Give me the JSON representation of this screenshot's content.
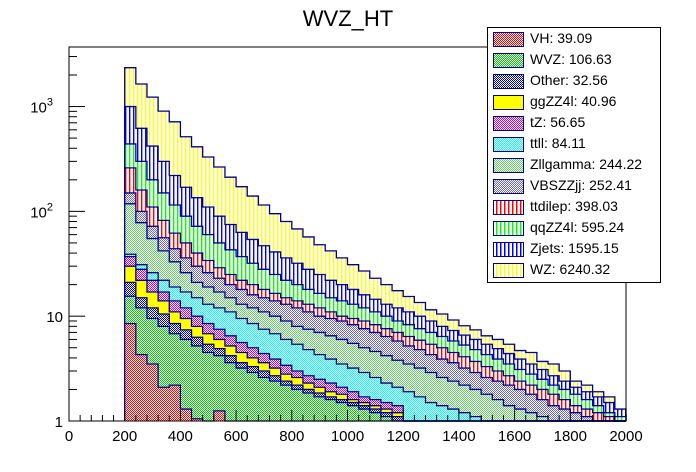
{
  "chart_data": {
    "type": "bar",
    "subtype": "stacked-histogram",
    "title": "WVZ_HT",
    "xlabel": "",
    "ylabel": "",
    "xlim": [
      0,
      2000
    ],
    "ylim": [
      1,
      3700
    ],
    "yscale": "log",
    "x_ticks": [
      "0",
      "200",
      "400",
      "600",
      "800",
      "1000",
      "1200",
      "1400",
      "1600",
      "1800",
      "2000"
    ],
    "y_ticks": [
      {
        "value": 1,
        "label": "1"
      },
      {
        "value": 10,
        "label": "10"
      },
      {
        "value": 100,
        "label": "10",
        "exp": "2"
      },
      {
        "value": 1000,
        "label": "10",
        "exp": "3"
      }
    ],
    "bin_edges_start": 200,
    "bin_width": 40,
    "legend_position": "top-right",
    "note": "cumulative stack tops per bin (data units), bottom-to-top order",
    "series": [
      {
        "name": "VH",
        "legend": "VH: 39.09",
        "color": "#ff0000",
        "pattern": "checker",
        "cum": [
          8.5,
          4.3,
          3.5,
          2.1,
          2.2,
          1.3,
          1.05,
          0,
          1.25,
          0,
          0,
          0,
          0,
          0,
          0,
          0,
          0,
          0,
          0,
          0,
          0,
          0,
          0,
          0,
          0,
          0,
          0,
          0,
          0,
          0,
          0,
          0,
          0,
          0,
          0,
          0,
          0,
          0,
          0,
          0,
          0,
          0,
          0,
          0,
          0
        ]
      },
      {
        "name": "WVZ",
        "legend": "WVZ: 106.63",
        "color": "#00cc00",
        "pattern": "checker",
        "cum": [
          15.5,
          12,
          9.5,
          8,
          6.8,
          6,
          5.2,
          4.5,
          4.2,
          3.6,
          3.2,
          2.9,
          2.6,
          2.4,
          2.2,
          2.0,
          1.85,
          1.7,
          1.6,
          1.5,
          1.4,
          1.3,
          1.2,
          1.1,
          1.0,
          0,
          0,
          0,
          0,
          0,
          0,
          0,
          0,
          0,
          0,
          0,
          0,
          0,
          0,
          0,
          0,
          0,
          0,
          0,
          0
        ]
      },
      {
        "name": "Other",
        "legend": "Other: 32.56",
        "color": "#0000cc",
        "pattern": "checker",
        "cum": [
          21,
          15,
          12,
          10.5,
          8.5,
          7.4,
          6.3,
          5.4,
          4.9,
          4.2,
          3.6,
          3.3,
          3.0,
          2.7,
          2.4,
          2.2,
          2.0,
          1.85,
          1.7,
          1.6,
          1.5,
          1.4,
          1.3,
          1.2,
          1.1,
          0,
          0,
          0,
          0,
          0,
          0,
          0,
          0,
          0,
          0,
          0,
          0,
          0,
          0,
          0,
          0,
          0,
          0,
          0,
          0
        ]
      },
      {
        "name": "ggZZ4l",
        "legend": "ggZZ4l: 40.96",
        "color": "#ffff00",
        "pattern": "solid",
        "cum": [
          30,
          22,
          17,
          14,
          11,
          9.5,
          8,
          6.8,
          6,
          5.2,
          4.5,
          4.0,
          3.6,
          3.2,
          2.8,
          2.6,
          2.3,
          2.1,
          1.9,
          1.8,
          1.6,
          1.5,
          1.4,
          1.3,
          1.2,
          0,
          0,
          0,
          0,
          0,
          0,
          0,
          0,
          0,
          0,
          0,
          0,
          0,
          0,
          0,
          0,
          0,
          0,
          0,
          0
        ]
      },
      {
        "name": "tZ",
        "legend": "tZ: 56.65",
        "color": "#cc00cc",
        "pattern": "checker",
        "cum": [
          37,
          28,
          22,
          17,
          14,
          12,
          10,
          8.5,
          7.5,
          6.5,
          5.6,
          5.0,
          4.4,
          3.9,
          3.4,
          3.0,
          2.7,
          2.5,
          2.3,
          2.1,
          1.9,
          1.7,
          1.6,
          1.5,
          1.4,
          0,
          0,
          0,
          0,
          0,
          0,
          0,
          0,
          0,
          0,
          0,
          0,
          0,
          0,
          0,
          0,
          0,
          0,
          0,
          0
        ]
      },
      {
        "name": "ttll",
        "legend": "ttll: 84.11",
        "color": "#00ffff",
        "pattern": "checker",
        "cum": [
          39,
          31,
          26,
          22,
          19,
          17,
          15,
          13,
          12,
          11,
          9.5,
          8.5,
          7.5,
          6.8,
          6,
          5.4,
          4.8,
          4.3,
          3.9,
          3.5,
          3.2,
          2.9,
          2.6,
          2.3,
          2.1,
          1.9,
          1.7,
          1.5,
          1.4,
          1.3,
          1.2,
          1.1,
          0,
          0,
          0,
          0,
          0,
          0,
          0,
          0,
          0,
          0,
          0,
          0,
          0
        ]
      },
      {
        "name": "Zllgamma",
        "legend": "Zllgamma: 244.22",
        "color": "#66cc66",
        "pattern": "checker",
        "cum": [
          118,
          78,
          55,
          42,
          33,
          26,
          21,
          19,
          17,
          15,
          13,
          12,
          11,
          10,
          9,
          8,
          7.5,
          7,
          6.5,
          6,
          5.5,
          5,
          4.6,
          4.2,
          3.8,
          3.5,
          3.2,
          2.9,
          2.6,
          2.4,
          2.2,
          2.0,
          1.8,
          1.6,
          1.4,
          1.3,
          1.2,
          1.1,
          0,
          0,
          0,
          0,
          0,
          0,
          0
        ]
      },
      {
        "name": "VBSZZjj",
        "legend": "VBSZZjj: 252.41",
        "color": "#6666cc",
        "pattern": "checker",
        "cum": [
          150,
          100,
          72,
          56,
          44,
          36,
          30,
          26,
          23,
          20,
          18,
          16,
          15,
          14,
          13,
          12,
          11,
          10,
          9.5,
          9,
          8.3,
          7.6,
          7,
          6.4,
          5.8,
          5.2,
          4.8,
          4.3,
          3.9,
          3.6,
          3.2,
          2.9,
          2.6,
          2.4,
          2.2,
          2.0,
          1.8,
          1.6,
          1.4,
          1.3,
          1.2,
          1.1,
          0,
          0,
          0
        ]
      },
      {
        "name": "ttdilep",
        "legend": "ttdilep: 398.03",
        "color": "#ff0000",
        "pattern": "vlines",
        "cum": [
          260,
          160,
          110,
          82,
          62,
          50,
          40,
          34,
          29,
          25,
          22,
          20,
          18,
          16.5,
          15,
          14,
          13,
          12,
          11,
          10,
          9.5,
          9,
          8.3,
          7.6,
          7,
          6.4,
          5.9,
          5.4,
          5.0,
          4.5,
          4.1,
          3.7,
          3.3,
          3.0,
          2.7,
          2.4,
          2.2,
          2.0,
          1.8,
          1.6,
          1.4,
          1.3,
          1.2,
          1.1,
          0
        ]
      },
      {
        "name": "qqZZ4l",
        "legend": "qqZZ4l: 595.24",
        "color": "#00ff00",
        "pattern": "vlines",
        "cum": [
          440,
          300,
          200,
          150,
          115,
          90,
          72,
          60,
          50,
          43,
          37,
          32,
          28,
          25,
          22,
          20,
          18,
          16.5,
          15,
          14,
          13,
          12,
          11,
          10,
          9,
          8.3,
          7.6,
          7,
          6.4,
          5.8,
          5.3,
          4.8,
          4.3,
          3.9,
          3.5,
          3.1,
          2.8,
          2.5,
          2.2,
          2.0,
          1.8,
          1.6,
          1.4,
          1.2,
          1.1
        ]
      },
      {
        "name": "Zjets",
        "legend": "Zjets: 1595.15",
        "color": "#0000ff",
        "pattern": "vlines",
        "cum": [
          1000,
          620,
          420,
          300,
          220,
          170,
          135,
          110,
          90,
          75,
          63,
          54,
          47,
          41,
          36,
          32,
          28,
          25,
          22,
          20,
          18,
          16,
          14.5,
          13,
          12,
          11,
          10,
          9,
          8,
          7.3,
          6.6,
          6,
          5.4,
          4.9,
          4.4,
          3.9,
          3.5,
          3.1,
          2.7,
          2.4,
          2.1,
          1.9,
          1.7,
          1.5,
          1.3
        ]
      },
      {
        "name": "WZ",
        "legend": "WZ: 6240.32",
        "color": "#ffff00",
        "pattern": "vlines",
        "cum": [
          2350,
          1640,
          1230,
          905,
          715,
          515,
          413,
          330,
          265,
          212,
          172,
          140,
          115,
          95,
          80,
          68,
          57,
          48,
          42,
          36,
          31,
          27,
          23,
          20,
          17.5,
          15.4,
          13.5,
          11.5,
          10.5,
          9.2,
          8.1,
          7.4,
          6.5,
          6,
          5.4,
          4.7,
          4.5,
          3.7,
          3.5,
          3.0,
          2.4,
          2.2,
          1.9,
          1.7,
          1.15
        ]
      }
    ]
  }
}
